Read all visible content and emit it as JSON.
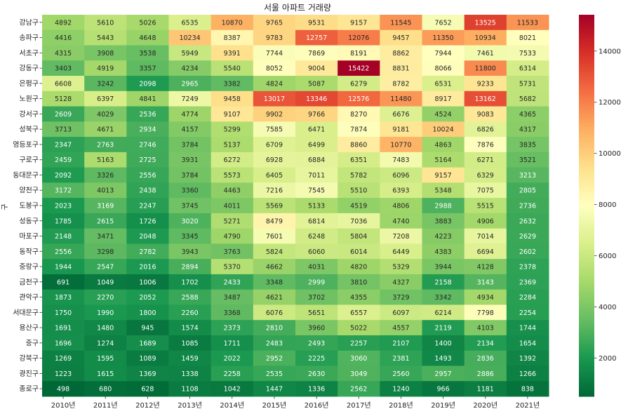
{
  "chart_data": {
    "type": "heatmap",
    "title": "서울 아파트 거래량",
    "ylabel": "구",
    "xlabel": "",
    "x_categories": [
      "2010년",
      "2011년",
      "2012년",
      "2013년",
      "2014년",
      "2015년",
      "2016년",
      "2017년",
      "2018년",
      "2019년",
      "2020년",
      "2021년"
    ],
    "y_categories": [
      "강남구",
      "송파구",
      "서초구",
      "강동구",
      "은평구",
      "노원구",
      "강서구",
      "성북구",
      "영등포구",
      "구로구",
      "동대문구",
      "양천구",
      "도봉구",
      "성동구",
      "마포구",
      "동작구",
      "중랑구",
      "금천구",
      "관악구",
      "서대문구",
      "용산구",
      "중구",
      "강북구",
      "광진구",
      "종로구"
    ],
    "values": [
      [
        4892,
        5610,
        5026,
        6535,
        10870,
        9765,
        9531,
        9157,
        11545,
        7652,
        13525,
        11533
      ],
      [
        4416,
        5443,
        4648,
        10234,
        8387,
        9783,
        12757,
        12076,
        9457,
        11350,
        10934,
        8021
      ],
      [
        4315,
        3908,
        3538,
        5949,
        9391,
        7744,
        7869,
        8191,
        8862,
        7944,
        7461,
        7533
      ],
      [
        3403,
        4919,
        3357,
        4234,
        5540,
        8052,
        9004,
        15422,
        8831,
        8066,
        11800,
        6314
      ],
      [
        6608,
        3242,
        2098,
        2965,
        3382,
        4824,
        5087,
        6279,
        8782,
        6531,
        9233,
        5731
      ],
      [
        5128,
        6397,
        4841,
        7249,
        9458,
        13017,
        13346,
        12576,
        11480,
        8917,
        13162,
        5682
      ],
      [
        2609,
        4029,
        2536,
        4774,
        9107,
        9902,
        9766,
        8270,
        6676,
        4524,
        9083,
        4365
      ],
      [
        3713,
        4671,
        2934,
        4157,
        5299,
        7585,
        6471,
        7874,
        9181,
        10024,
        6826,
        4317
      ],
      [
        2347,
        2763,
        2746,
        3784,
        5137,
        6709,
        6499,
        8860,
        10770,
        4863,
        7876,
        3835
      ],
      [
        2459,
        5163,
        2725,
        3931,
        6272,
        6928,
        6884,
        6351,
        7483,
        5164,
        6271,
        3521
      ],
      [
        2092,
        3326,
        2556,
        3784,
        5573,
        6405,
        7011,
        5782,
        6096,
        9157,
        6329,
        3213
      ],
      [
        3172,
        4013,
        2438,
        3360,
        4463,
        7216,
        7545,
        5510,
        6393,
        5348,
        7075,
        2805
      ],
      [
        2023,
        3169,
        2247,
        3745,
        4011,
        5569,
        5133,
        4519,
        4806,
        2988,
        5515,
        2736
      ],
      [
        1785,
        2615,
        1726,
        3020,
        5271,
        8479,
        6814,
        7036,
        4740,
        3883,
        4906,
        2632
      ],
      [
        2148,
        3471,
        2048,
        3345,
        4790,
        7601,
        6248,
        5804,
        7208,
        4223,
        7014,
        2629
      ],
      [
        2556,
        3298,
        2782,
        3943,
        3763,
        5824,
        6060,
        6014,
        6449,
        4383,
        6694,
        2602
      ],
      [
        1944,
        2547,
        2016,
        2894,
        5370,
        4662,
        4031,
        4820,
        5329,
        3944,
        4128,
        2378
      ],
      [
        691,
        1049,
        1006,
        1702,
        2433,
        3348,
        2999,
        3810,
        4327,
        2158,
        3143,
        2369
      ],
      [
        1873,
        2270,
        2052,
        2588,
        3487,
        4621,
        3702,
        4355,
        3729,
        3342,
        4934,
        2284
      ],
      [
        1750,
        1990,
        1800,
        2260,
        3368,
        6076,
        5651,
        6557,
        6097,
        6214,
        7798,
        2254
      ],
      [
        1691,
        1480,
        945,
        1574,
        2373,
        2810,
        3960,
        5022,
        4557,
        2119,
        4103,
        1744
      ],
      [
        1696,
        1274,
        1689,
        1085,
        1711,
        2483,
        2493,
        2257,
        2107,
        1400,
        2134,
        1654
      ],
      [
        1269,
        1595,
        1089,
        1459,
        2022,
        2952,
        2225,
        3060,
        2381,
        1493,
        2836,
        1392
      ],
      [
        1223,
        1615,
        1369,
        1338,
        2258,
        2535,
        2630,
        3049,
        2560,
        2957,
        2886,
        1266
      ],
      [
        498,
        680,
        628,
        1108,
        1042,
        1447,
        1336,
        2562,
        1240,
        966,
        1181,
        838
      ]
    ],
    "vmin": 498,
    "vmax": 15422,
    "colormap": "RdYlGn_r",
    "annotated": true,
    "colorbar": {
      "ticks": [
        2000,
        4000,
        6000,
        8000,
        10000,
        12000,
        14000
      ],
      "tick_labels": [
        "2000",
        "4000",
        "6000",
        "8000",
        "10000",
        "12000",
        "14000"
      ]
    }
  }
}
